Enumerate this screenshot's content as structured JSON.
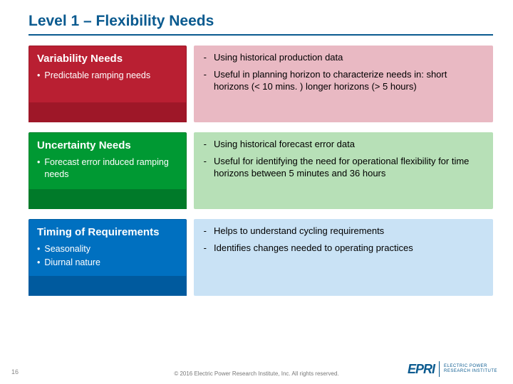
{
  "title": "Level 1 – Flexibility Needs",
  "rows": [
    {
      "box": {
        "color": "red",
        "title": "Variability Needs",
        "bullets": [
          "Predictable ramping needs"
        ]
      },
      "right": {
        "color": "pink",
        "points": [
          "Using historical production data",
          "Useful in planning horizon to characterize needs in: short horizons (< 10 mins. ) longer horizons (> 5 hours)"
        ]
      }
    },
    {
      "box": {
        "color": "green",
        "title": "Uncertainty Needs",
        "bullets": [
          "Forecast error induced ramping needs"
        ]
      },
      "right": {
        "color": "ltgrn",
        "points": [
          "Using historical forecast error data",
          "Useful for identifying the need for operational flexibility for time horizons between 5 minutes and 36 hours"
        ]
      }
    },
    {
      "box": {
        "color": "blue",
        "title": "Timing of Requirements",
        "bullets": [
          "Seasonality",
          "Diurnal nature"
        ]
      },
      "right": {
        "color": "ltblu",
        "points": [
          "Helps to understand cycling requirements",
          "Identifies changes needed to operating practices"
        ]
      }
    }
  ],
  "footer": "© 2016 Electric Power Research Institute, Inc. All rights reserved.",
  "slideNumber": "16",
  "logo": {
    "mark": "EPRI",
    "line1": "ELECTRIC POWER",
    "line2": "RESEARCH INSTITUTE"
  },
  "colors": {
    "titleColor": "#0a5a8f",
    "red": "#b91f32",
    "redDark": "#9e1728",
    "green": "#009933",
    "greenDark": "#007a29",
    "blue": "#0070c0",
    "blueDark": "#005a9e",
    "pink": "#e9b9c3",
    "ltgrn": "#b7e0b7",
    "ltblu": "#c9e2f5"
  }
}
